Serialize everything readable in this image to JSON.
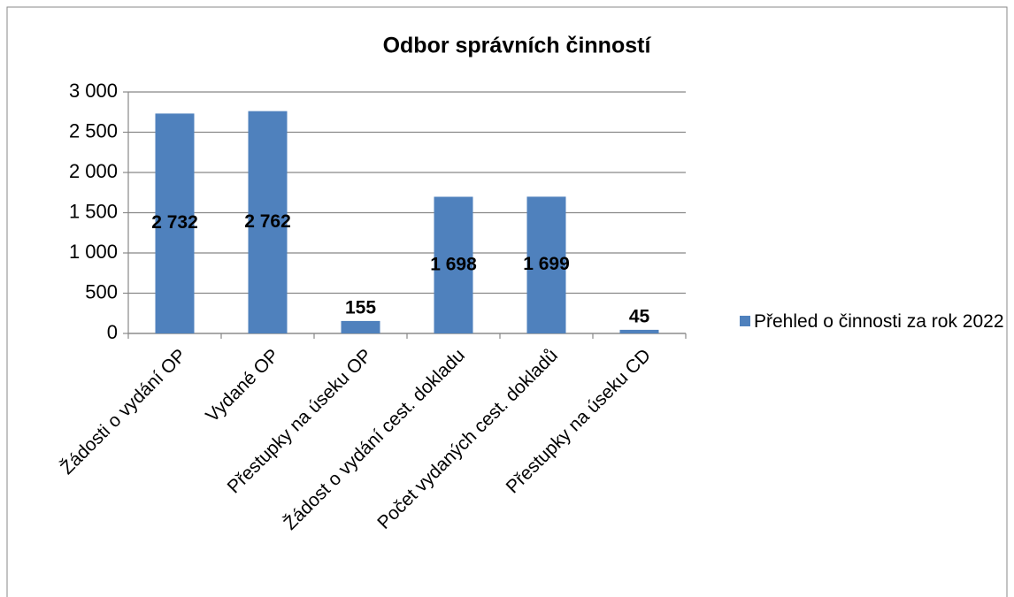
{
  "chart_data": {
    "type": "bar",
    "title": "Odbor správních činností",
    "categories": [
      "Žádosti o vydání OP",
      "Vydané OP",
      "Přestupky na úseku OP",
      "Žádost o vydání cest. dokladu",
      "Počet vydaných cest. dokladů",
      "Přestupky na úseku CD"
    ],
    "series": [
      {
        "name": "Přehled o činnosti za rok 2022",
        "color": "#4f81bd",
        "values": [
          2732,
          2762,
          155,
          1698,
          1699,
          45
        ],
        "value_labels": [
          "2 732",
          "2 762",
          "155",
          "1 698",
          "1 699",
          "45"
        ]
      }
    ],
    "ylim": [
      0,
      3000
    ],
    "yticks": [
      0,
      500,
      {
        "value": 1000,
        "label": "1 000"
      },
      {
        "value": 1500,
        "label": "1 500"
      },
      {
        "value": 2000,
        "label": "2 000"
      },
      {
        "value": 2500,
        "label": "2 500"
      },
      {
        "value": 3000,
        "label": "3 000"
      }
    ],
    "grid": true,
    "legend": "right"
  }
}
